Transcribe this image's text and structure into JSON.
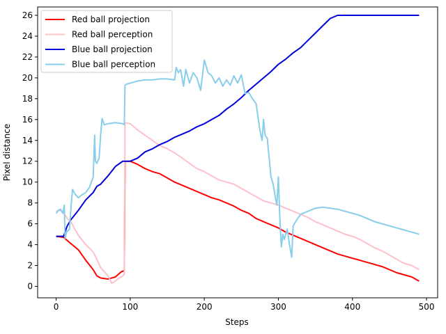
{
  "chart_data": {
    "type": "line",
    "title": "",
    "xlabel": "Steps",
    "ylabel": "Pixel distance",
    "xlim": [
      -25,
      515
    ],
    "ylim": [
      -1.1,
      26.8
    ],
    "xticks": [
      0,
      100,
      200,
      300,
      400,
      500
    ],
    "yticks": [
      0,
      2,
      4,
      6,
      8,
      10,
      12,
      14,
      16,
      18,
      20,
      22,
      24,
      26
    ],
    "grid": false,
    "legend_position": "top-left",
    "series": [
      {
        "name": "Red ball projection",
        "color": "#ff0000",
        "x": [
          0,
          10,
          20,
          30,
          40,
          50,
          55,
          60,
          70,
          80,
          88,
          92,
          93,
          100,
          110,
          120,
          130,
          140,
          150,
          160,
          170,
          180,
          190,
          200,
          210,
          220,
          230,
          240,
          250,
          260,
          270,
          280,
          290,
          300,
          310,
          320,
          330,
          340,
          350,
          360,
          370,
          380,
          390,
          400,
          410,
          420,
          430,
          440,
          450,
          460,
          470,
          480,
          490
        ],
        "y": [
          4.8,
          4.7,
          4.1,
          3.5,
          2.5,
          1.6,
          1.0,
          0.8,
          0.7,
          0.9,
          1.4,
          1.5,
          12.0,
          12.0,
          11.7,
          11.3,
          11.0,
          10.8,
          10.4,
          10.0,
          9.7,
          9.4,
          9.1,
          8.8,
          8.5,
          8.3,
          8.0,
          7.7,
          7.3,
          7.0,
          6.5,
          6.2,
          5.9,
          5.6,
          5.2,
          4.9,
          4.6,
          4.3,
          4.0,
          3.7,
          3.4,
          3.1,
          2.9,
          2.7,
          2.5,
          2.3,
          2.1,
          1.9,
          1.6,
          1.3,
          1.1,
          0.9,
          0.5
        ]
      },
      {
        "name": "Red ball perception",
        "color": "#ffc0cb",
        "x": [
          0,
          5,
          10,
          15,
          20,
          25,
          30,
          40,
          50,
          55,
          60,
          70,
          75,
          80,
          85,
          90,
          92,
          93,
          100,
          110,
          120,
          130,
          140,
          150,
          160,
          170,
          180,
          190,
          200,
          210,
          220,
          230,
          240,
          250,
          260,
          270,
          280,
          290,
          300,
          310,
          320,
          330,
          340,
          350,
          360,
          370,
          380,
          390,
          400,
          410,
          420,
          430,
          440,
          450,
          460,
          470,
          480,
          490
        ],
        "y": [
          7.2,
          7.3,
          7.1,
          6.5,
          6.2,
          5.5,
          4.9,
          4.0,
          3.3,
          2.6,
          1.8,
          1.0,
          0.3,
          0.5,
          0.8,
          1.0,
          1.2,
          15.7,
          15.6,
          15.0,
          14.5,
          14.0,
          13.5,
          13.2,
          12.8,
          12.3,
          11.8,
          11.3,
          11.0,
          10.6,
          10.2,
          10.0,
          9.8,
          9.4,
          9.0,
          8.6,
          8.2,
          8.0,
          7.8,
          7.5,
          7.2,
          6.9,
          6.6,
          6.2,
          5.9,
          5.6,
          5.3,
          5.0,
          4.8,
          4.5,
          4.1,
          3.7,
          3.4,
          3.0,
          2.6,
          2.2,
          2.0,
          1.6
        ]
      },
      {
        "name": "Blue ball projection",
        "color": "#0000dd",
        "x": [
          0,
          10,
          15,
          20,
          30,
          40,
          50,
          55,
          60,
          70,
          80,
          90,
          100,
          110,
          120,
          130,
          140,
          150,
          160,
          170,
          180,
          190,
          200,
          210,
          220,
          230,
          240,
          250,
          260,
          270,
          280,
          290,
          300,
          310,
          320,
          330,
          340,
          350,
          360,
          370,
          380,
          390,
          400,
          420,
          440,
          460,
          480,
          490
        ],
        "y": [
          4.8,
          4.8,
          5.8,
          6.4,
          7.3,
          8.3,
          9.0,
          9.6,
          9.8,
          10.6,
          11.5,
          12.0,
          12.0,
          12.3,
          12.9,
          13.2,
          13.6,
          13.9,
          14.3,
          14.6,
          14.9,
          15.3,
          15.6,
          16.0,
          16.4,
          17.0,
          17.5,
          18.1,
          18.8,
          19.4,
          20.0,
          20.6,
          21.3,
          21.8,
          22.4,
          22.9,
          23.6,
          24.3,
          25.0,
          25.7,
          26.0,
          26.0,
          26.0,
          26.0,
          26.0,
          26.0,
          26.0,
          26.0
        ]
      },
      {
        "name": "Blue ball perception",
        "color": "#87ceeb",
        "x": [
          0,
          3,
          6,
          9,
          11,
          12,
          14,
          18,
          20,
          22,
          26,
          30,
          35,
          40,
          45,
          50,
          52,
          53,
          55,
          58,
          60,
          62,
          65,
          70,
          80,
          90,
          92,
          93,
          95,
          100,
          110,
          120,
          130,
          140,
          150,
          160,
          162,
          165,
          168,
          172,
          175,
          180,
          185,
          190,
          195,
          200,
          205,
          210,
          215,
          220,
          225,
          230,
          235,
          240,
          245,
          250,
          255,
          260,
          265,
          270,
          275,
          278,
          280,
          282,
          285,
          288,
          290,
          293,
          296,
          298,
          300,
          302,
          304,
          306,
          308,
          312,
          315,
          318,
          320,
          325,
          330,
          340,
          350,
          360,
          370,
          380,
          390,
          400,
          410,
          420,
          430,
          440,
          450,
          460,
          470,
          480,
          490
        ],
        "y": [
          7.0,
          7.3,
          7.4,
          7.0,
          7.8,
          4.6,
          5.2,
          5.5,
          7.5,
          9.3,
          8.8,
          8.5,
          8.8,
          9.0,
          9.5,
          10.5,
          14.5,
          12.0,
          11.8,
          12.3,
          14.5,
          16.1,
          15.5,
          15.6,
          15.7,
          15.6,
          15.5,
          19.3,
          19.4,
          19.5,
          19.7,
          19.8,
          19.8,
          19.9,
          19.9,
          19.8,
          21.0,
          20.5,
          20.8,
          19.2,
          20.8,
          19.5,
          20.5,
          20.0,
          18.8,
          21.7,
          20.5,
          20.2,
          19.5,
          20.0,
          19.2,
          19.8,
          19.3,
          20.2,
          19.5,
          20.3,
          18.5,
          18.6,
          18.0,
          17.5,
          15.0,
          14.0,
          16.0,
          14.5,
          14.2,
          12.0,
          10.5,
          9.8,
          8.5,
          7.8,
          10.5,
          6.5,
          3.8,
          5.0,
          4.5,
          5.5,
          4.0,
          2.8,
          5.8,
          6.4,
          6.9,
          7.2,
          7.5,
          7.6,
          7.5,
          7.4,
          7.2,
          7.0,
          6.8,
          6.5,
          6.2,
          6.0,
          5.8,
          5.6,
          5.4,
          5.2,
          5.0
        ]
      }
    ]
  }
}
